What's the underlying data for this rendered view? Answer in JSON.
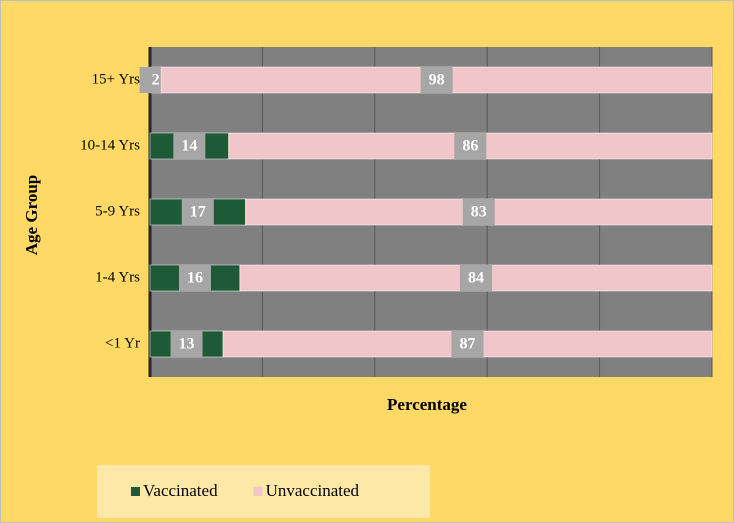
{
  "chart_data": {
    "type": "stacked_barh",
    "xlabel": "Percentage",
    "ylabel": "Age Group",
    "categories": [
      "15+ Yrs",
      "10-14 Yrs",
      "5-9 Yrs",
      "1-4 Yrs",
      "<1 Yr"
    ],
    "series": [
      {
        "name": "Vaccinated",
        "color": "#1f5a38",
        "values": [
          2,
          14,
          17,
          16,
          13
        ]
      },
      {
        "name": "Unvaccinated",
        "color": "#f1c6ca",
        "values": [
          98,
          86,
          83,
          84,
          87
        ]
      }
    ],
    "xlim": [
      0,
      100
    ],
    "xticks": [
      0,
      20,
      40,
      60,
      80,
      100
    ],
    "grid": true,
    "legend": "bottom"
  }
}
